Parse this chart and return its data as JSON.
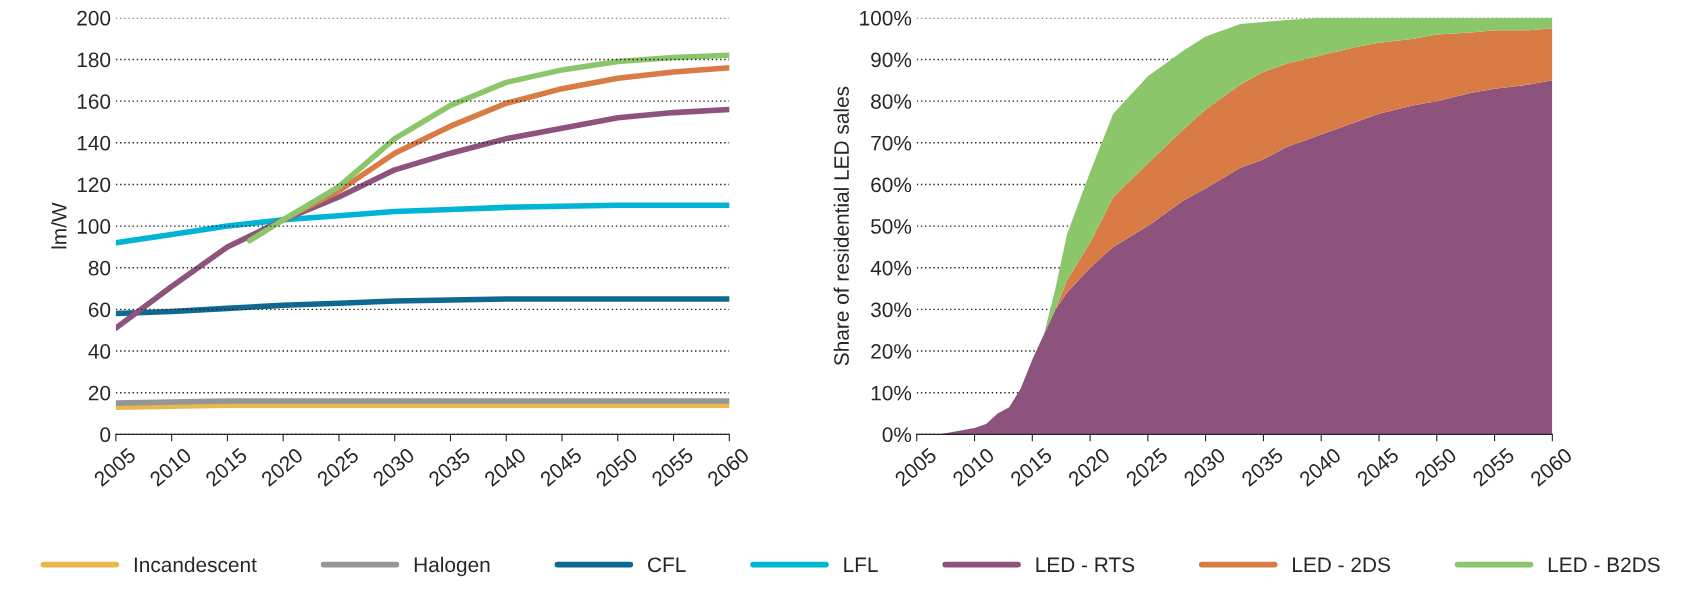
{
  "chart_data": [
    {
      "type": "line",
      "ylabel": "lm/W",
      "xlim": [
        2005,
        2060
      ],
      "xticks": [
        2005,
        2010,
        2015,
        2020,
        2025,
        2030,
        2035,
        2040,
        2045,
        2050,
        2055,
        2060
      ],
      "ylim": [
        0,
        200
      ],
      "yticks": [
        0,
        20,
        40,
        60,
        80,
        100,
        120,
        140,
        160,
        180,
        200
      ],
      "grid": "y",
      "legend": "bottom",
      "line_style": "solid",
      "marker": "none",
      "x": [
        2005,
        2010,
        2015,
        2020,
        2025,
        2030,
        2035,
        2040,
        2045,
        2050,
        2055,
        2060
      ],
      "series": [
        {
          "name": "Incandescent",
          "color": "#e8b84a",
          "values": [
            13,
            13.5,
            14,
            14,
            14,
            14,
            14,
            14,
            14,
            14,
            14,
            14
          ]
        },
        {
          "name": "Halogen",
          "color": "#969696",
          "values": [
            15,
            15.5,
            16,
            16,
            16,
            16,
            16,
            16,
            16,
            16,
            16,
            16
          ]
        },
        {
          "name": "CFL",
          "color": "#0e6890",
          "values": [
            58,
            59,
            60.5,
            62,
            63,
            64,
            64.5,
            65,
            65,
            65,
            65,
            65
          ]
        },
        {
          "name": "LFL",
          "color": "#00b4d6",
          "values": [
            92,
            96,
            100,
            103,
            105,
            107,
            108,
            109,
            109.5,
            110,
            110,
            110
          ]
        },
        {
          "name": "LED - RTS",
          "color": "#8e537c",
          "values": [
            51,
            71,
            90,
            103,
            114,
            127,
            135,
            142,
            147,
            152,
            154.5,
            156
          ]
        },
        {
          "name": "LED - 2DS",
          "color": "#d97b45",
          "x": [
            2020,
            2025,
            2030,
            2035,
            2040,
            2045,
            2050,
            2055,
            2060
          ],
          "values": [
            103,
            117,
            135,
            148,
            159,
            166,
            171,
            174,
            176
          ]
        },
        {
          "name": "LED - B2DS",
          "color": "#8cc66a",
          "x": [
            2017,
            2020,
            2025,
            2030,
            2035,
            2040,
            2045,
            2050,
            2055,
            2060
          ],
          "values": [
            93,
            103,
            119,
            142,
            158,
            169,
            175,
            179,
            181,
            182
          ]
        }
      ]
    },
    {
      "type": "area",
      "stacked": true,
      "ylabel": "Share of residential LED sales",
      "xlim": [
        2005,
        2060
      ],
      "xticks": [
        2005,
        2010,
        2015,
        2020,
        2025,
        2030,
        2035,
        2040,
        2045,
        2050,
        2055,
        2060
      ],
      "ylim": [
        0,
        100
      ],
      "yticks": [
        {
          "value": 0,
          "label": "0%"
        },
        {
          "value": 10,
          "label": "10%"
        },
        {
          "value": 20,
          "label": "20%"
        },
        {
          "value": 30,
          "label": "30%"
        },
        {
          "value": 40,
          "label": "40%"
        },
        {
          "value": 50,
          "label": "50%"
        },
        {
          "value": 60,
          "label": "60%"
        },
        {
          "value": 70,
          "label": "70%"
        },
        {
          "value": 80,
          "label": "80%"
        },
        {
          "value": 90,
          "label": "90%"
        },
        {
          "value": 100,
          "label": "100%"
        }
      ],
      "grid": "y",
      "x": [
        2005,
        2007,
        2010,
        2011,
        2012,
        2013,
        2014,
        2015,
        2016,
        2017,
        2018,
        2020,
        2022,
        2025,
        2028,
        2030,
        2033,
        2035,
        2037,
        2040,
        2043,
        2045,
        2048,
        2050,
        2053,
        2055,
        2058,
        2060
      ],
      "series": [
        {
          "color": "#8e537c",
          "values": [
            0,
            0,
            1.5,
            2.5,
            5,
            6.5,
            11,
            18,
            24,
            30,
            34,
            40,
            45,
            50,
            56,
            59,
            64,
            66,
            69,
            72,
            75,
            77,
            79,
            80,
            82,
            83,
            84,
            85
          ]
        },
        {
          "color": "#d97b45",
          "values": [
            0,
            0,
            0,
            0,
            0,
            0,
            0,
            0,
            0,
            0,
            3,
            6,
            12,
            15,
            17,
            19,
            20,
            21,
            20,
            19,
            18,
            17,
            16,
            16,
            14.5,
            14,
            13,
            12.5
          ]
        },
        {
          "color": "#8cc66a",
          "values": [
            0,
            0,
            0,
            0,
            0,
            0,
            0,
            0,
            0,
            5,
            11,
            17,
            20,
            21,
            19,
            17.5,
            14.5,
            12,
            10.5,
            9,
            7,
            6,
            5,
            4,
            3.5,
            3,
            3,
            2.5
          ]
        }
      ]
    }
  ]
}
